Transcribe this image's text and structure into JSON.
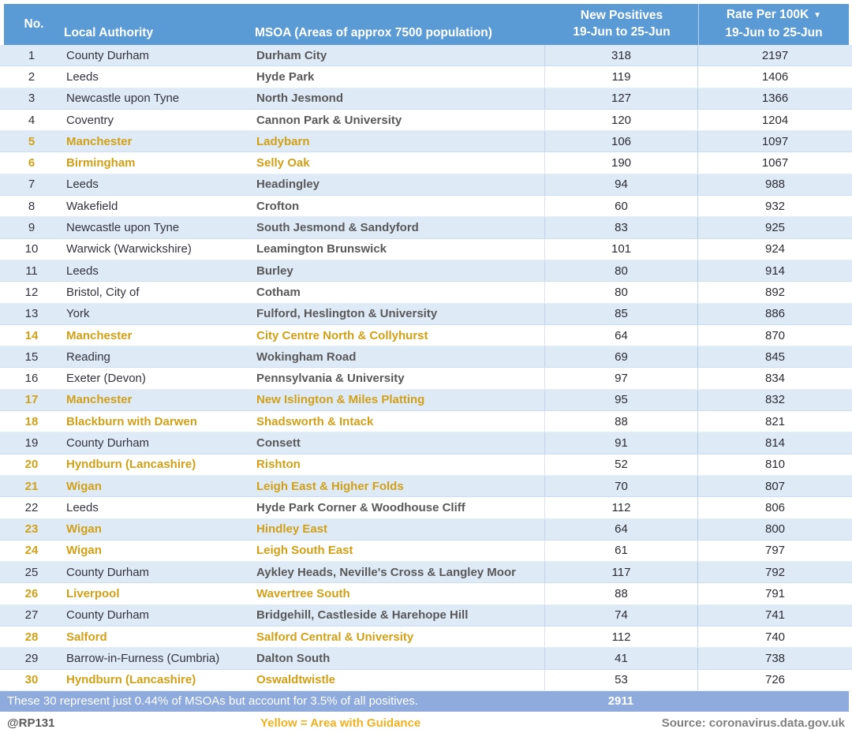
{
  "colors": {
    "header_blue": "#5B9BD5",
    "row_alt_blue": "#DEEBF7",
    "guidance_yellow": "#D2A017",
    "legend_yellow": "#F2B01E",
    "summary_bar_blue": "#8FAADC"
  },
  "table": {
    "columns": {
      "no": "No.",
      "local_authority": "Local Authority",
      "msoa": "MSOA (Areas of approx 7500 population)",
      "new_positives_line1": "New Positives",
      "rate_line1": "Rate Per 100K",
      "period": "19-Jun to 25-Jun",
      "sort_icon": "▼"
    },
    "rows": [
      {
        "no": "1",
        "la": "County Durham",
        "msoa": "Durham City",
        "np": "318",
        "rate": "2197",
        "guidance": false
      },
      {
        "no": "2",
        "la": "Leeds",
        "msoa": "Hyde Park",
        "np": "119",
        "rate": "1406",
        "guidance": false
      },
      {
        "no": "3",
        "la": "Newcastle upon Tyne",
        "msoa": "North Jesmond",
        "np": "127",
        "rate": "1366",
        "guidance": false
      },
      {
        "no": "4",
        "la": "Coventry",
        "msoa": "Cannon Park & University",
        "np": "120",
        "rate": "1204",
        "guidance": false
      },
      {
        "no": "5",
        "la": "Manchester",
        "msoa": "Ladybarn",
        "np": "106",
        "rate": "1097",
        "guidance": true
      },
      {
        "no": "6",
        "la": "Birmingham",
        "msoa": "Selly Oak",
        "np": "190",
        "rate": "1067",
        "guidance": true
      },
      {
        "no": "7",
        "la": "Leeds",
        "msoa": "Headingley",
        "np": "94",
        "rate": "988",
        "guidance": false
      },
      {
        "no": "8",
        "la": "Wakefield",
        "msoa": "Crofton",
        "np": "60",
        "rate": "932",
        "guidance": false
      },
      {
        "no": "9",
        "la": "Newcastle upon Tyne",
        "msoa": "South Jesmond & Sandyford",
        "np": "83",
        "rate": "925",
        "guidance": false
      },
      {
        "no": "10",
        "la": "Warwick (Warwickshire)",
        "msoa": "Leamington Brunswick",
        "np": "101",
        "rate": "924",
        "guidance": false
      },
      {
        "no": "11",
        "la": "Leeds",
        "msoa": "Burley",
        "np": "80",
        "rate": "914",
        "guidance": false
      },
      {
        "no": "12",
        "la": "Bristol, City of",
        "msoa": "Cotham",
        "np": "80",
        "rate": "892",
        "guidance": false
      },
      {
        "no": "13",
        "la": "York",
        "msoa": "Fulford, Heslington & University",
        "np": "85",
        "rate": "886",
        "guidance": false
      },
      {
        "no": "14",
        "la": "Manchester",
        "msoa": "City Centre North & Collyhurst",
        "np": "64",
        "rate": "870",
        "guidance": true
      },
      {
        "no": "15",
        "la": "Reading",
        "msoa": "Wokingham Road",
        "np": "69",
        "rate": "845",
        "guidance": false
      },
      {
        "no": "16",
        "la": "Exeter (Devon)",
        "msoa": "Pennsylvania & University",
        "np": "97",
        "rate": "834",
        "guidance": false
      },
      {
        "no": "17",
        "la": "Manchester",
        "msoa": "New Islington & Miles Platting",
        "np": "95",
        "rate": "832",
        "guidance": true
      },
      {
        "no": "18",
        "la": "Blackburn with Darwen",
        "msoa": "Shadsworth & Intack",
        "np": "88",
        "rate": "821",
        "guidance": true
      },
      {
        "no": "19",
        "la": "County Durham",
        "msoa": "Consett",
        "np": "91",
        "rate": "814",
        "guidance": false
      },
      {
        "no": "20",
        "la": "Hyndburn (Lancashire)",
        "msoa": "Rishton",
        "np": "52",
        "rate": "810",
        "guidance": true
      },
      {
        "no": "21",
        "la": "Wigan",
        "msoa": "Leigh East & Higher Folds",
        "np": "70",
        "rate": "807",
        "guidance": true
      },
      {
        "no": "22",
        "la": "Leeds",
        "msoa": "Hyde Park Corner & Woodhouse Cliff",
        "np": "112",
        "rate": "806",
        "guidance": false
      },
      {
        "no": "23",
        "la": "Wigan",
        "msoa": "Hindley East",
        "np": "64",
        "rate": "800",
        "guidance": true
      },
      {
        "no": "24",
        "la": "Wigan",
        "msoa": "Leigh South East",
        "np": "61",
        "rate": "797",
        "guidance": true
      },
      {
        "no": "25",
        "la": "County Durham",
        "msoa": "Aykley Heads, Neville's Cross & Langley Moor",
        "np": "117",
        "rate": "792",
        "guidance": false
      },
      {
        "no": "26",
        "la": "Liverpool",
        "msoa": "Wavertree South",
        "np": "88",
        "rate": "791",
        "guidance": true
      },
      {
        "no": "27",
        "la": "County Durham",
        "msoa": "Bridgehill, Castleside & Harehope Hill",
        "np": "74",
        "rate": "741",
        "guidance": false
      },
      {
        "no": "28",
        "la": "Salford",
        "msoa": "Salford Central & University",
        "np": "112",
        "rate": "740",
        "guidance": true
      },
      {
        "no": "29",
        "la": "Barrow-in-Furness (Cumbria)",
        "msoa": "Dalton South",
        "np": "41",
        "rate": "738",
        "guidance": false
      },
      {
        "no": "30",
        "la": "Hyndburn (Lancashire)",
        "msoa": "Oswaldtwistle",
        "np": "53",
        "rate": "726",
        "guidance": true
      }
    ],
    "summary": {
      "text": "These 30 represent just 0.44% of MSOAs but account for 3.5% of all positives.",
      "total_new_positives": "2911"
    }
  },
  "footer": {
    "handle": "@RP131",
    "legend": "Yellow = Area with Guidance",
    "source": "Source: coronavirus.data.gov.uk"
  }
}
